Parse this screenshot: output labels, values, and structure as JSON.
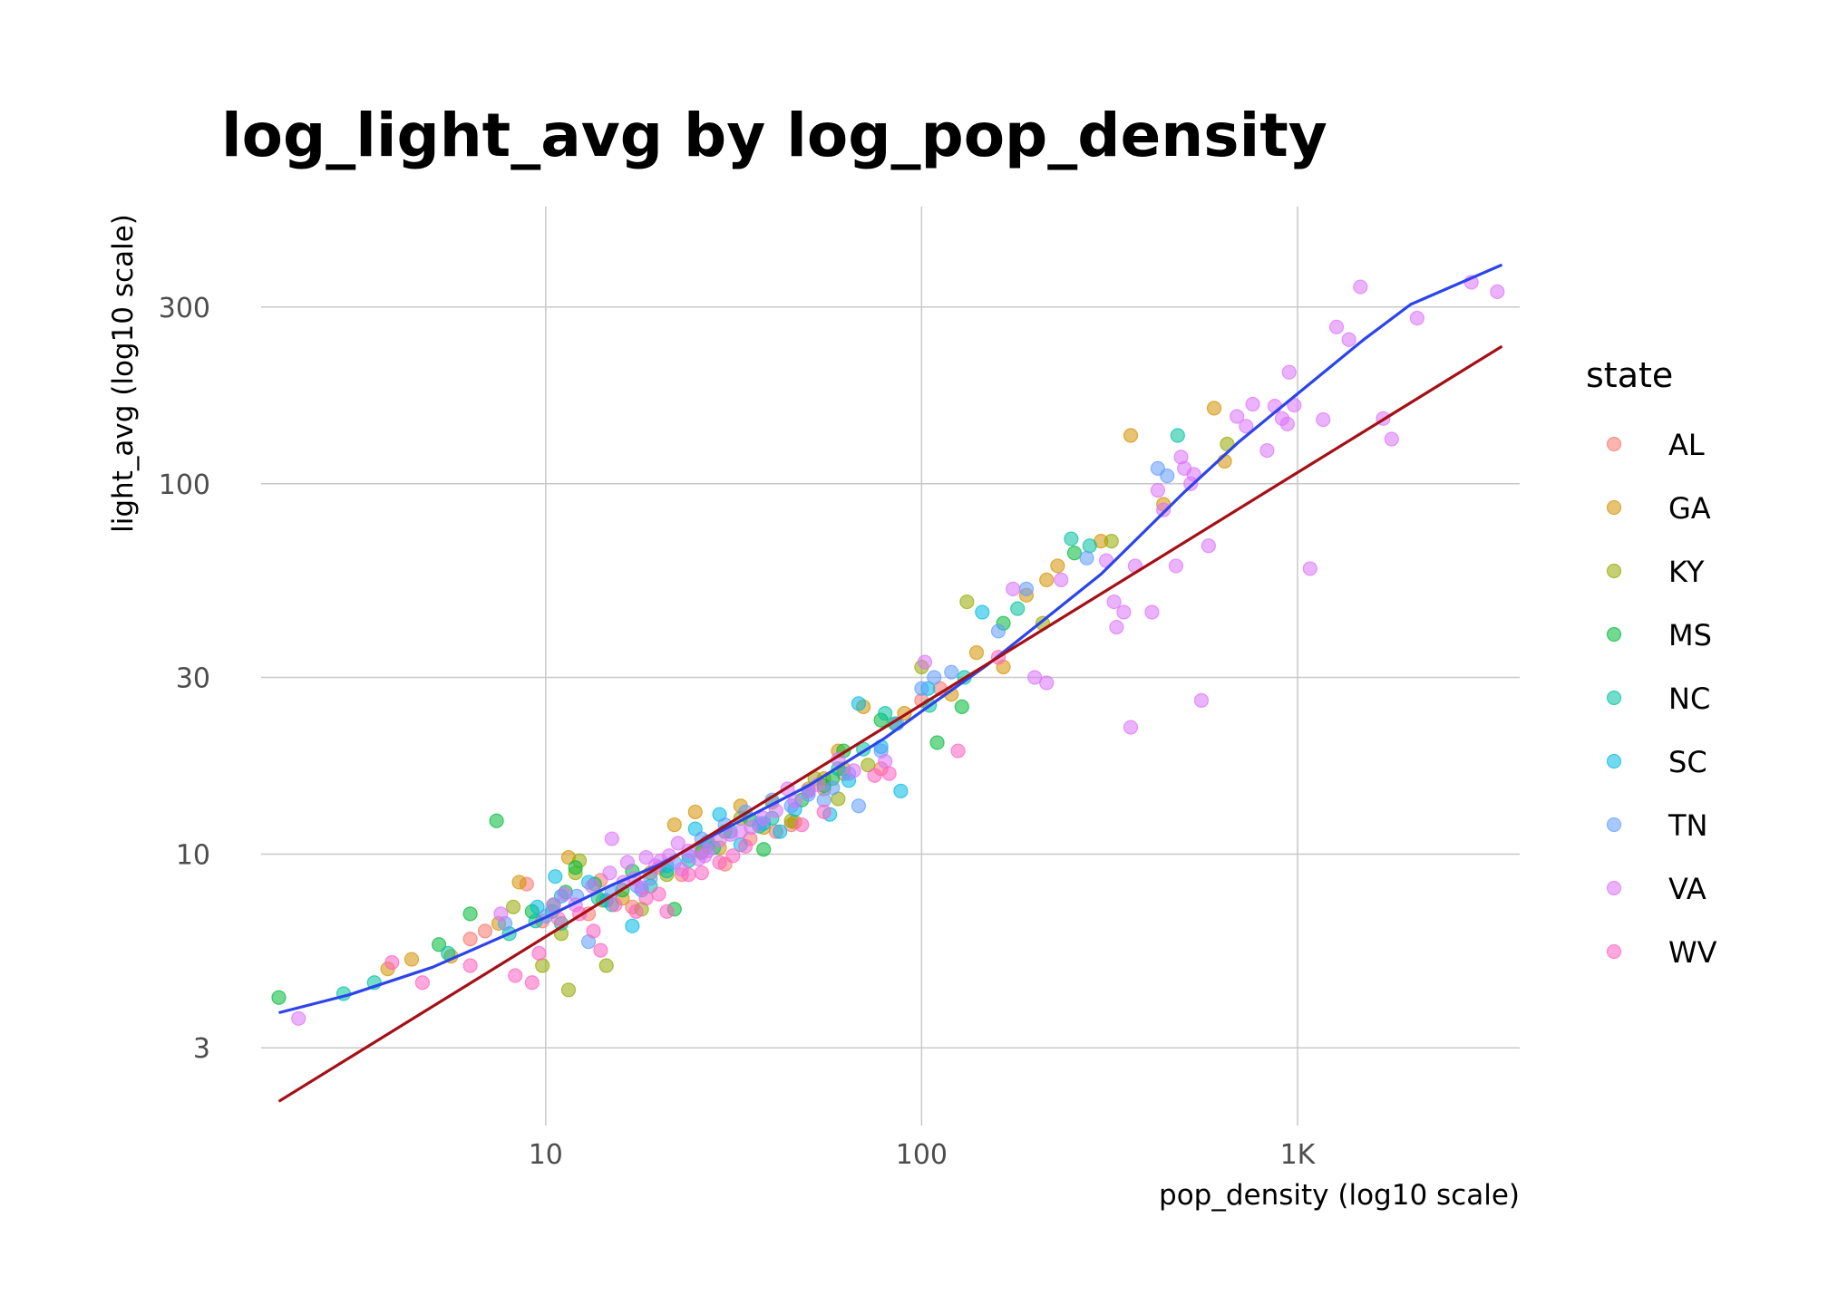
{
  "chart_data": {
    "type": "scatter",
    "title": "log_light_avg by log_pop_density",
    "xlabel": "pop_density (log10 scale)",
    "ylabel": "light_avg (log10 scale)",
    "x_scale": "log10",
    "y_scale": "log10",
    "xlim": [
      1.75,
      3900
    ],
    "ylim": [
      1.85,
      560
    ],
    "x_ticks": [
      {
        "value": 10,
        "label": "10"
      },
      {
        "value": 100,
        "label": "100"
      },
      {
        "value": 1000,
        "label": "1K"
      }
    ],
    "y_ticks": [
      {
        "value": 3,
        "label": "3"
      },
      {
        "value": 10,
        "label": "10"
      },
      {
        "value": 30,
        "label": "30"
      },
      {
        "value": 100,
        "label": "100"
      },
      {
        "value": 300,
        "label": "300"
      }
    ],
    "grid": true,
    "legend": {
      "title": "state",
      "placement": "right"
    },
    "series": [
      {
        "name": "AL",
        "color": "#F8766D",
        "points": [
          [
            6.3,
            5.9
          ],
          [
            8.9,
            8.3
          ],
          [
            14,
            8.5
          ],
          [
            20,
            9.2
          ],
          [
            26,
            10.2
          ],
          [
            35,
            11
          ],
          [
            55,
            15
          ],
          [
            78,
            17
          ],
          [
            100,
            26
          ],
          [
            112,
            28
          ],
          [
            13,
            6.9
          ],
          [
            17,
            7.2
          ],
          [
            30,
            9.4
          ],
          [
            45,
            12
          ],
          [
            9.8,
            6.6
          ],
          [
            23,
            8.8
          ],
          [
            41,
            11.5
          ],
          [
            62,
            16.5
          ],
          [
            6.9,
            6.2
          ]
        ]
      },
      {
        "name": "GA",
        "color": "#D39200",
        "points": [
          [
            3.8,
            4.9
          ],
          [
            4.4,
            5.2
          ],
          [
            5.6,
            5.3
          ],
          [
            8.5,
            8.4
          ],
          [
            11.5,
            9.8
          ],
          [
            22,
            12
          ],
          [
            25,
            13
          ],
          [
            33,
            13.5
          ],
          [
            46,
            12.2
          ],
          [
            50,
            15
          ],
          [
            55,
            16
          ],
          [
            60,
            19
          ],
          [
            70,
            25
          ],
          [
            140,
            35
          ],
          [
            165,
            32
          ],
          [
            190,
            50
          ],
          [
            215,
            55
          ],
          [
            230,
            60
          ],
          [
            300,
            70
          ],
          [
            360,
            135
          ],
          [
            440,
            88
          ],
          [
            600,
            160
          ],
          [
            640,
            115
          ],
          [
            7.5,
            6.5
          ],
          [
            16,
            7.6
          ],
          [
            29,
            10.4
          ],
          [
            38,
            11.8
          ],
          [
            62,
            17
          ],
          [
            90,
            24
          ],
          [
            120,
            27
          ],
          [
            19,
            8.9
          ],
          [
            27,
            10.8
          ]
        ]
      },
      {
        "name": "KY",
        "color": "#93AA00",
        "points": [
          [
            9.8,
            5
          ],
          [
            11.5,
            4.3
          ],
          [
            12,
            8.9
          ],
          [
            14.5,
            5
          ],
          [
            12.3,
            9.6
          ],
          [
            18,
            7.1
          ],
          [
            33,
            12.5
          ],
          [
            40,
            13.8
          ],
          [
            52,
            16
          ],
          [
            100,
            32
          ],
          [
            132,
            48
          ],
          [
            210,
            42
          ],
          [
            320,
            70
          ],
          [
            650,
            128
          ],
          [
            8.2,
            7.2
          ],
          [
            11,
            6.1
          ],
          [
            14.2,
            7.5
          ],
          [
            21,
            8.8
          ],
          [
            27,
            10.6
          ],
          [
            45,
            12.3
          ],
          [
            60,
            14.1
          ],
          [
            72,
            17.4
          ]
        ]
      },
      {
        "name": "MS",
        "color": "#00BA38",
        "points": [
          [
            1.95,
            4.1
          ],
          [
            5.2,
            5.7
          ],
          [
            6.3,
            6.9
          ],
          [
            7.4,
            12.3
          ],
          [
            9.2,
            7
          ],
          [
            10.5,
            7.3
          ],
          [
            12,
            9.2
          ],
          [
            16,
            8
          ],
          [
            22,
            7.1
          ],
          [
            30,
            11.5
          ],
          [
            38,
            10.3
          ],
          [
            48,
            14
          ],
          [
            58,
            16
          ],
          [
            62,
            19
          ],
          [
            78,
            23
          ],
          [
            110,
            20
          ],
          [
            128,
            25
          ],
          [
            165,
            42
          ],
          [
            255,
            65
          ],
          [
            11.3,
            7.9
          ],
          [
            13.5,
            8.3
          ],
          [
            17,
            9
          ],
          [
            26,
            10.1
          ],
          [
            35,
            12.4
          ],
          [
            55,
            15.3
          ],
          [
            85,
            22.5
          ]
        ]
      },
      {
        "name": "NC",
        "color": "#00C19F",
        "points": [
          [
            2.9,
            4.2
          ],
          [
            3.5,
            4.5
          ],
          [
            5.5,
            5.4
          ],
          [
            8,
            6.1
          ],
          [
            11,
            6.5
          ],
          [
            15,
            7.3
          ],
          [
            19,
            8.2
          ],
          [
            24,
            9.6
          ],
          [
            31,
            11.5
          ],
          [
            40,
            12.5
          ],
          [
            60,
            17
          ],
          [
            80,
            24
          ],
          [
            130,
            30
          ],
          [
            180,
            46
          ],
          [
            250,
            71
          ],
          [
            280,
            68
          ],
          [
            480,
            135
          ],
          [
            10.4,
            7
          ],
          [
            13.8,
            7.6
          ],
          [
            21,
            9
          ],
          [
            28,
            10.4
          ],
          [
            37,
            11.9
          ],
          [
            50,
            14.8
          ],
          [
            70,
            19.2
          ],
          [
            105,
            25.2
          ],
          [
            9.4,
            6.6
          ]
        ]
      },
      {
        "name": "SC",
        "color": "#00B9E3",
        "points": [
          [
            9.5,
            7.2
          ],
          [
            11,
            7.7
          ],
          [
            14.5,
            7.5
          ],
          [
            17,
            6.4
          ],
          [
            25,
            11.7
          ],
          [
            29,
            12.8
          ],
          [
            42,
            11.5
          ],
          [
            57,
            12.8
          ],
          [
            68,
            25.5
          ],
          [
            88,
            14.8
          ],
          [
            145,
            45
          ],
          [
            10.6,
            8.7
          ],
          [
            13,
            8.4
          ],
          [
            18,
            8
          ],
          [
            21,
            9.3
          ],
          [
            33,
            10.6
          ],
          [
            46,
            13.2
          ],
          [
            64,
            15.8
          ],
          [
            78,
            19.5
          ],
          [
            104,
            28
          ],
          [
            38,
            12.1
          ]
        ]
      },
      {
        "name": "TN",
        "color": "#619CFF",
        "points": [
          [
            7.8,
            6.5
          ],
          [
            10,
            6.8
          ],
          [
            13,
            5.8
          ],
          [
            17.5,
            8.2
          ],
          [
            22,
            9.5
          ],
          [
            26,
            11
          ],
          [
            30,
            12
          ],
          [
            34,
            13
          ],
          [
            40,
            14
          ],
          [
            50,
            14.5
          ],
          [
            55,
            14
          ],
          [
            64,
            16.5
          ],
          [
            68,
            13.5
          ],
          [
            78,
            19
          ],
          [
            100,
            28
          ],
          [
            108,
            30
          ],
          [
            160,
            40
          ],
          [
            190,
            52
          ],
          [
            275,
            63
          ],
          [
            425,
            110
          ],
          [
            450,
            105
          ],
          [
            12.1,
            7.7
          ],
          [
            15,
            7.9
          ],
          [
            19,
            8.6
          ],
          [
            24,
            9.9
          ],
          [
            27,
            10.8
          ],
          [
            37,
            12.1
          ],
          [
            45,
            13.5
          ],
          [
            58,
            15.1
          ],
          [
            86,
            22.5
          ],
          [
            120,
            31
          ]
        ]
      },
      {
        "name": "VA",
        "color": "#DB72FB",
        "points": [
          [
            2.2,
            3.6
          ],
          [
            7.6,
            6.9
          ],
          [
            10.5,
            7.3
          ],
          [
            12,
            7.3
          ],
          [
            15,
            11
          ],
          [
            16.5,
            9.5
          ],
          [
            18.5,
            9.8
          ],
          [
            22.5,
            10.7
          ],
          [
            27,
            10.2
          ],
          [
            33,
            11.5
          ],
          [
            38,
            12.5
          ],
          [
            44,
            15
          ],
          [
            50,
            14.8
          ],
          [
            60,
            18
          ],
          [
            80,
            17.8
          ],
          [
            102,
            33
          ],
          [
            175,
            52
          ],
          [
            200,
            30
          ],
          [
            215,
            29
          ],
          [
            235,
            55
          ],
          [
            310,
            62
          ],
          [
            325,
            48
          ],
          [
            330,
            41
          ],
          [
            345,
            45
          ],
          [
            360,
            22
          ],
          [
            370,
            60
          ],
          [
            410,
            45
          ],
          [
            425,
            96
          ],
          [
            440,
            85
          ],
          [
            475,
            60
          ],
          [
            490,
            118
          ],
          [
            500,
            110
          ],
          [
            520,
            100
          ],
          [
            530,
            106
          ],
          [
            555,
            26
          ],
          [
            580,
            68
          ],
          [
            690,
            152
          ],
          [
            730,
            143
          ],
          [
            760,
            164
          ],
          [
            830,
            123
          ],
          [
            870,
            162
          ],
          [
            910,
            150
          ],
          [
            940,
            145
          ],
          [
            950,
            200
          ],
          [
            980,
            163
          ],
          [
            1080,
            59
          ],
          [
            1170,
            149
          ],
          [
            1270,
            265
          ],
          [
            1370,
            245
          ],
          [
            1470,
            340
          ],
          [
            1690,
            150
          ],
          [
            1780,
            132
          ],
          [
            2080,
            280
          ],
          [
            2900,
            350
          ],
          [
            3400,
            330
          ],
          [
            11.2,
            7.8
          ],
          [
            13.3,
            8.2
          ],
          [
            14.8,
            8.9
          ],
          [
            17.2,
            8.6
          ],
          [
            19.6,
            9.3
          ],
          [
            21.3,
            9.9
          ],
          [
            24,
            10.2
          ],
          [
            25.5,
            9.7
          ],
          [
            29,
            10.9
          ],
          [
            31,
            11.3
          ],
          [
            35.2,
            11.8
          ],
          [
            41,
            13.1
          ],
          [
            46,
            13.9
          ],
          [
            53,
            15.4
          ],
          [
            66,
            16.8
          ],
          [
            18,
            8.1
          ],
          [
            23,
            9.1
          ],
          [
            26.5,
            9.9
          ],
          [
            20.2,
            9.6
          ],
          [
            16.1,
            8.4
          ]
        ]
      },
      {
        "name": "WV",
        "color": "#FF61C3",
        "points": [
          [
            3.9,
            5.1
          ],
          [
            4.7,
            4.5
          ],
          [
            6.3,
            5
          ],
          [
            8.3,
            4.7
          ],
          [
            9.2,
            4.5
          ],
          [
            9.6,
            5.4
          ],
          [
            12.3,
            6.9
          ],
          [
            14,
            5.5
          ],
          [
            18.5,
            7.6
          ],
          [
            21,
            7
          ],
          [
            24,
            8.8
          ],
          [
            29,
            9.5
          ],
          [
            34,
            10.5
          ],
          [
            48,
            12
          ],
          [
            55,
            13
          ],
          [
            75,
            16.3
          ],
          [
            82,
            16.5
          ],
          [
            125,
            19
          ],
          [
            160,
            34
          ],
          [
            10.8,
            6.7
          ],
          [
            13.4,
            6.2
          ],
          [
            15.3,
            7.3
          ],
          [
            17.4,
            7
          ],
          [
            20,
            7.8
          ],
          [
            26,
            8.9
          ],
          [
            31.5,
            9.9
          ]
        ]
      }
    ],
    "fit_lines": [
      {
        "kind": "smooth",
        "color": "#2B44EB",
        "points": [
          [
            1.95,
            3.73
          ],
          [
            3,
            4.17
          ],
          [
            5,
            4.95
          ],
          [
            8,
            6.1
          ],
          [
            10,
            6.75
          ],
          [
            15,
            8.25
          ],
          [
            20,
            9.35
          ],
          [
            30,
            11.7
          ],
          [
            50,
            15.3
          ],
          [
            80,
            20.6
          ],
          [
            100,
            24.3
          ],
          [
            150,
            32.5
          ],
          [
            200,
            41
          ],
          [
            300,
            57
          ],
          [
            500,
            95
          ],
          [
            700,
            130
          ],
          [
            1000,
            175
          ],
          [
            1500,
            245
          ],
          [
            2000,
            305
          ],
          [
            3500,
            390
          ]
        ]
      },
      {
        "kind": "linear",
        "color": "#A50F15",
        "points": [
          [
            1.95,
            2.15
          ],
          [
            3500,
            235
          ]
        ]
      }
    ]
  }
}
